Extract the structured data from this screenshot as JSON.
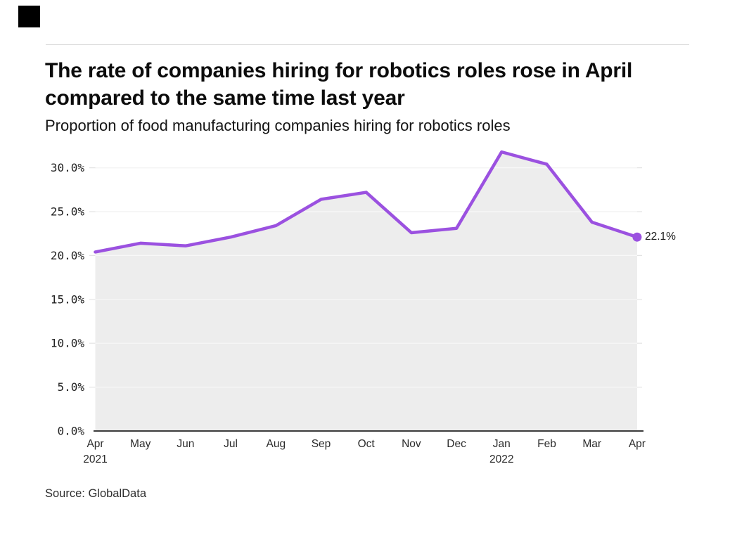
{
  "brand": {
    "logo_color": "#000000"
  },
  "footer": {
    "source": "Source: GlobalData"
  },
  "chart_data": {
    "type": "area",
    "title": "The rate of companies hiring for robotics roles rose in April compared to the same time last year",
    "subtitle": "Proportion of food manufacturing companies hiring for robotics roles",
    "x": [
      "Apr 2021",
      "May 2021",
      "Jun 2021",
      "Jul 2021",
      "Aug 2021",
      "Sep 2021",
      "Oct 2021",
      "Nov 2021",
      "Dec 2021",
      "Jan 2022",
      "Feb 2022",
      "Mar 2022",
      "Apr 2022"
    ],
    "x_tick_labels": [
      {
        "month": "Apr",
        "year": "2021"
      },
      {
        "month": "May"
      },
      {
        "month": "Jun"
      },
      {
        "month": "Jul"
      },
      {
        "month": "Aug"
      },
      {
        "month": "Sep"
      },
      {
        "month": "Oct"
      },
      {
        "month": "Nov"
      },
      {
        "month": "Dec"
      },
      {
        "month": "Jan",
        "year": "2022"
      },
      {
        "month": "Feb"
      },
      {
        "month": "Mar"
      },
      {
        "month": "Apr"
      }
    ],
    "values": [
      20.4,
      21.4,
      21.1,
      22.1,
      23.4,
      26.4,
      27.2,
      22.6,
      23.1,
      31.8,
      30.4,
      23.8,
      22.1
    ],
    "unit": "%",
    "ylabel": "",
    "xlabel": "",
    "ylim": [
      0,
      32.5
    ],
    "yticks": [
      {
        "value": 0,
        "label": "0.0%"
      },
      {
        "value": 5,
        "label": "5.0%"
      },
      {
        "value": 10,
        "label": "10.0%"
      },
      {
        "value": 15,
        "label": "15.0%"
      },
      {
        "value": 20,
        "label": "20.0%"
      },
      {
        "value": 25,
        "label": "25.0%"
      },
      {
        "value": 30,
        "label": "30.0%"
      }
    ],
    "end_point_label": "22.1%",
    "grid": true,
    "legend": "none",
    "colors": {
      "line": "#9B51E0",
      "area_fill": "#EDEDED",
      "gridline": "#E3E3E3",
      "axis": "#3C3C3C"
    }
  }
}
